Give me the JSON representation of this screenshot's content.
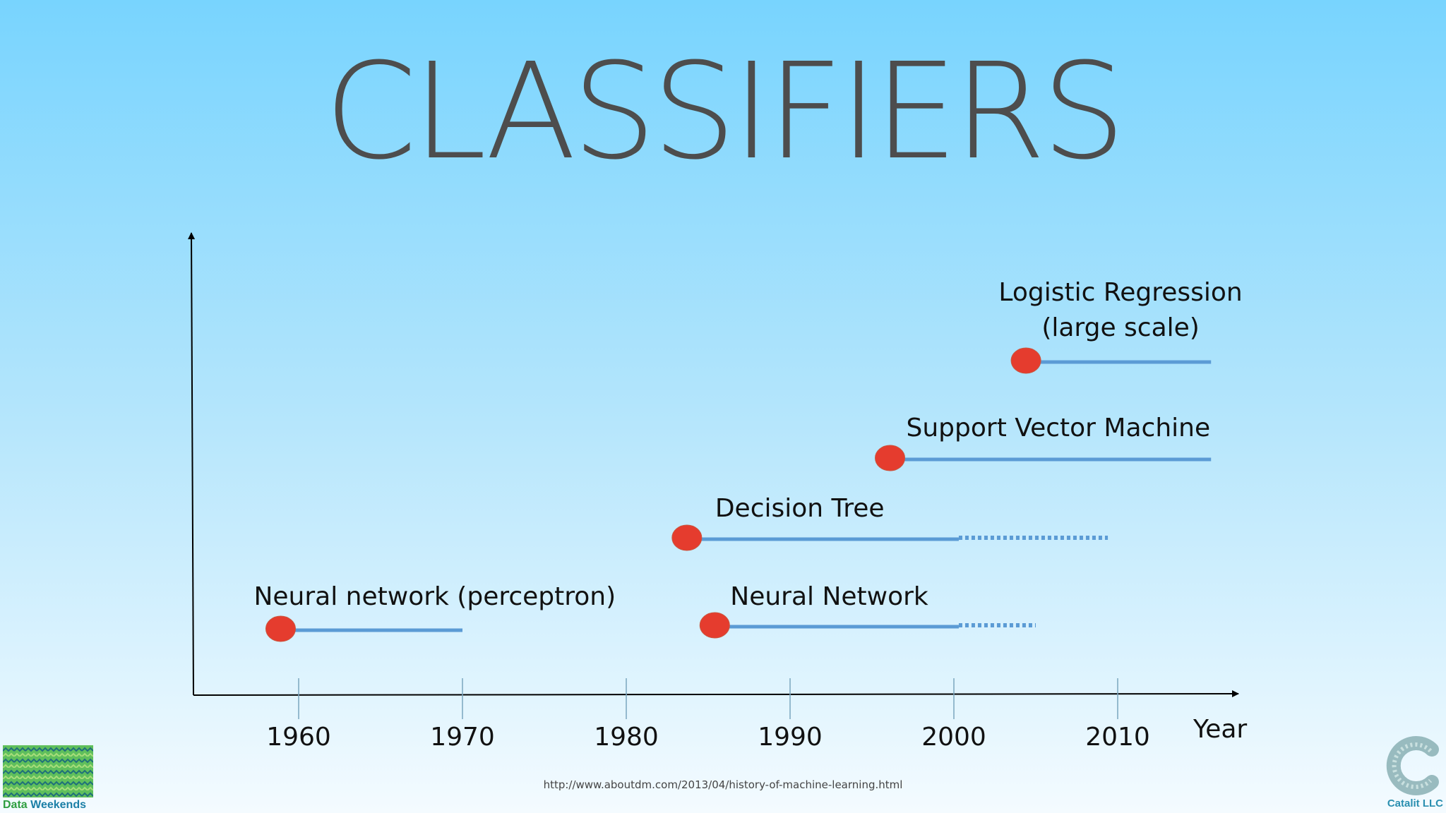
{
  "slide": {
    "title": "CLASSIFIERS",
    "source_url": "http://www.aboutdm.com/2013/04/history-of-machine-learning.html"
  },
  "chart_data": {
    "type": "timeline",
    "xlabel": "Year",
    "x_ticks": [
      1960,
      1970,
      1980,
      1990,
      2000,
      2010
    ],
    "x_range": [
      1953.3,
      2011.8
    ],
    "items": [
      {
        "name": "Neural network (perceptron)",
        "start": 1958.9,
        "solid_end": 1970.0,
        "dotted_end": null
      },
      {
        "name": "Neural Network",
        "start": 1985.4,
        "solid_end": 2000.3,
        "dotted_end": 2005.0
      },
      {
        "name": "Decision Tree",
        "start": 1983.7,
        "solid_end": 2000.3,
        "dotted_end": 2009.4
      },
      {
        "name": "Support Vector Machine",
        "start": 1996.1,
        "solid_end": 2015.7,
        "dotted_end": null
      },
      {
        "name": "Logistic Regression\n(large scale)",
        "label_lines": [
          "Logistic Regression",
          "(large scale)"
        ],
        "start": 2004.4,
        "solid_end": 2015.7,
        "dotted_end": null
      }
    ],
    "colors": {
      "marker": "#e53c2e",
      "line": "#5b9bd5",
      "axis": "#000000",
      "tick": "#7aa6bf"
    }
  },
  "logos": {
    "left": {
      "text_part1": "Data",
      "text_part2": " Weekends",
      "color_part1": "#2e9e3f",
      "color_part2": "#1b7fa6"
    },
    "right": {
      "text": "Catalit LLC",
      "color": "#2a8fb0"
    }
  }
}
